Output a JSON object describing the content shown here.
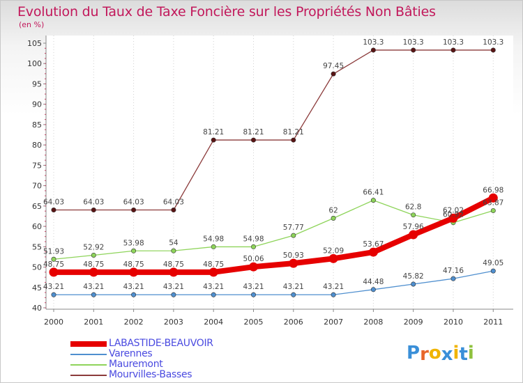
{
  "chart_data": {
    "type": "line",
    "title": "Evolution du Taux de Taxe Foncière sur les Propriétés Non Bâties",
    "ylabel": "(en %)",
    "xlabel": "",
    "ylim": [
      40,
      105
    ],
    "yticks": [
      40,
      45,
      50,
      55,
      60,
      65,
      70,
      75,
      80,
      85,
      90,
      95,
      100,
      105
    ],
    "categories": [
      "2000",
      "2001",
      "2002",
      "2003",
      "2004",
      "2005",
      "2006",
      "2007",
      "2008",
      "2009",
      "2010",
      "2011"
    ],
    "series": [
      {
        "name": "LABASTIDE-BEAUVOIR",
        "color": "#e60000",
        "values": [
          48.75,
          48.75,
          48.75,
          48.75,
          48.75,
          50.06,
          50.93,
          52.09,
          53.67,
          57.96,
          62.02,
          66.98
        ],
        "labels": [
          "48.75",
          "48.75",
          "48.75",
          "48.75",
          "48.75",
          "50.06",
          "50.93",
          "52.09",
          "53.67",
          "57.96",
          "62.02",
          "66.98"
        ]
      },
      {
        "name": "Varennes",
        "color": "#4f8fcf",
        "values": [
          43.21,
          43.21,
          43.21,
          43.21,
          43.21,
          43.21,
          43.21,
          43.21,
          44.48,
          45.82,
          47.16,
          49.05
        ],
        "labels": [
          "43.21",
          "43.21",
          "43.21",
          "43.21",
          "43.21",
          "43.21",
          "43.21",
          "43.21",
          "44.48",
          "45.82",
          "47.16",
          "49.05"
        ]
      },
      {
        "name": "Mauremont",
        "color": "#8ed45a",
        "values": [
          51.93,
          52.92,
          53.98,
          54,
          54.98,
          54.98,
          57.77,
          62,
          66.41,
          62.8,
          60.92,
          63.87
        ],
        "labels": [
          "51.93",
          "52.92",
          "53.98",
          "54",
          "54.98",
          "54.98",
          "57.77",
          "62",
          "66.41",
          "62.8",
          "60.92",
          "63.87"
        ]
      },
      {
        "name": "Mourvilles-Basses",
        "color": "#8b3a3a",
        "values": [
          64.03,
          64.03,
          64.03,
          64.03,
          81.21,
          81.21,
          81.21,
          97.45,
          103.3,
          103.3,
          103.3,
          103.3
        ],
        "labels": [
          "64.03",
          "64.03",
          "64.03",
          "64.03",
          "81.21",
          "81.21",
          "81.21",
          "97.45",
          "103.3",
          "103.3",
          "103.3",
          "103.3"
        ]
      }
    ],
    "legend_position": "bottom-left"
  },
  "brand": {
    "letters": [
      "P",
      "r",
      "o",
      "x",
      "i",
      "t",
      "i"
    ],
    "colors": [
      "#3a8fd8",
      "#e8662a",
      "#f0b400",
      "#3a8fd8",
      "#f0b400",
      "#3a8fd8",
      "#8fc13e"
    ]
  }
}
